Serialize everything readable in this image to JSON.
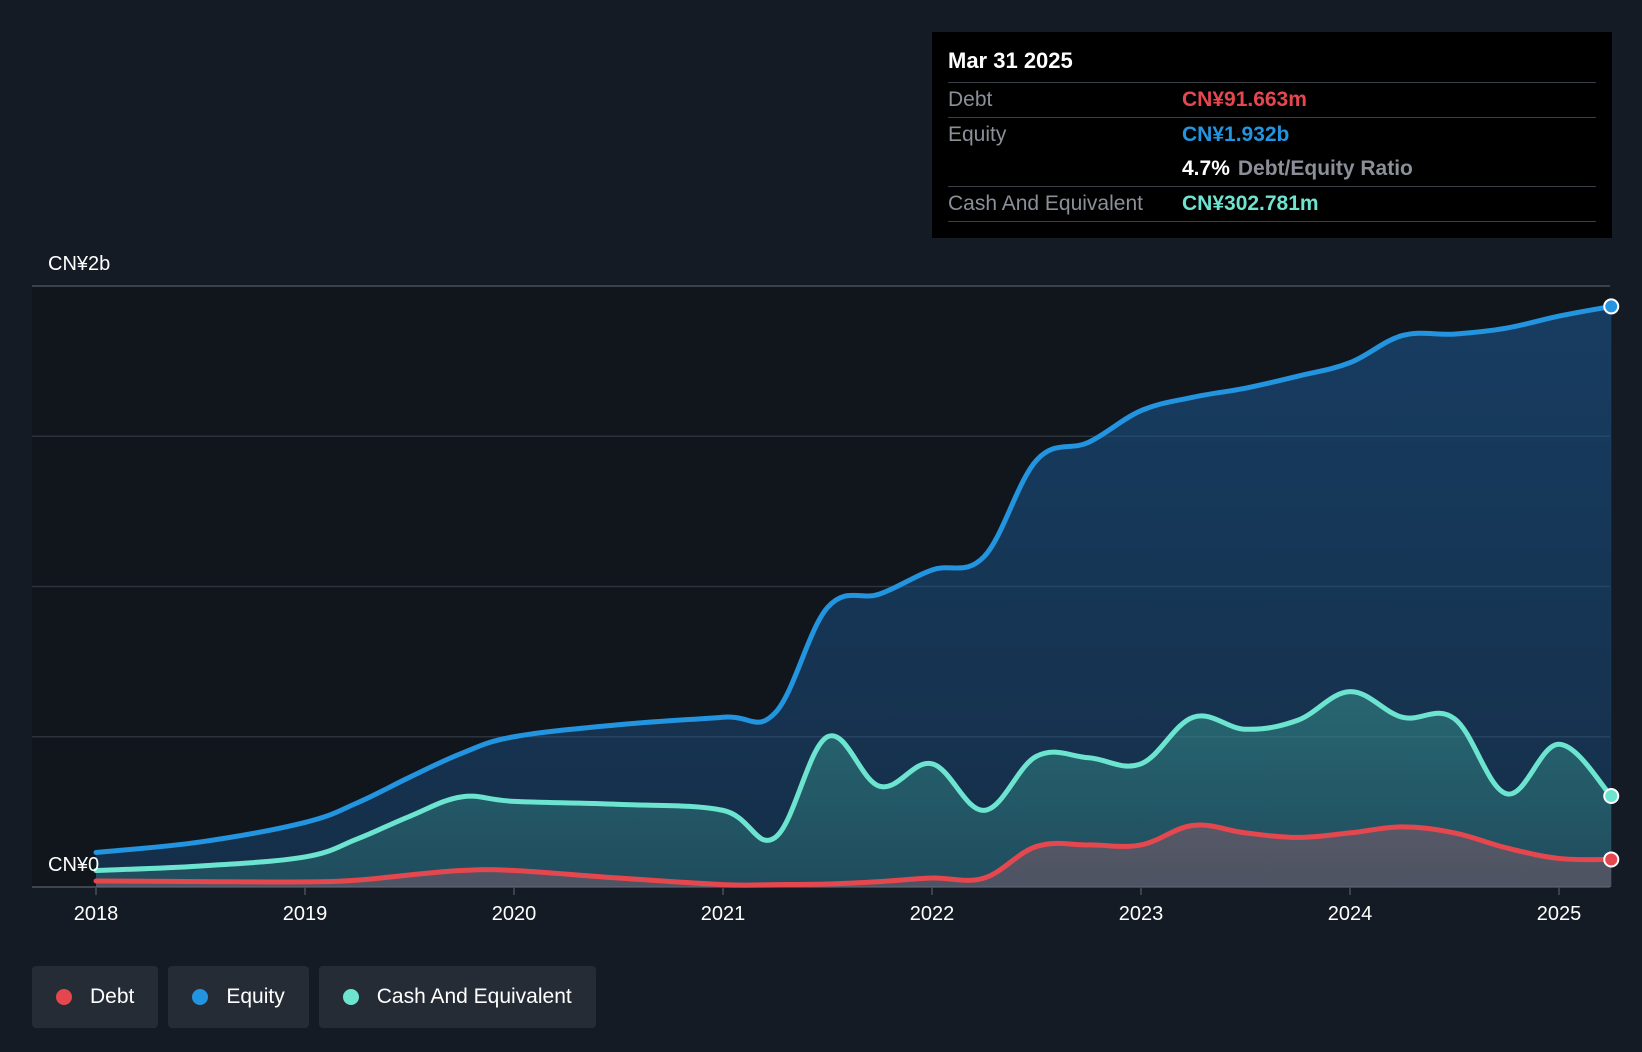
{
  "tooltip": {
    "date": "Mar 31 2025",
    "debt_label": "Debt",
    "debt_value": "CN¥91.663m",
    "equity_label": "Equity",
    "equity_value": "CN¥1.932b",
    "ratio_value": "4.7%",
    "ratio_label": "Debt/Equity Ratio",
    "cash_label": "Cash And Equivalent",
    "cash_value": "CN¥302.781m"
  },
  "legend": [
    {
      "name": "Debt",
      "color": "#e5474f"
    },
    {
      "name": "Equity",
      "color": "#2394df"
    },
    {
      "name": "Cash And Equivalent",
      "color": "#6ce4d0"
    }
  ],
  "chart_data": {
    "type": "area",
    "y_labels": {
      "top": "CN¥2b",
      "bottom": "CN¥0"
    },
    "ylim": [
      0,
      2000
    ],
    "xlim": [
      2017.95,
      2025.25
    ],
    "x_ticks": [
      {
        "value": 2018,
        "label": "2018"
      },
      {
        "value": 2019,
        "label": "2019"
      },
      {
        "value": 2020,
        "label": "2020"
      },
      {
        "value": 2021,
        "label": "2021"
      },
      {
        "value": 2022,
        "label": "2022"
      },
      {
        "value": 2023,
        "label": "2023"
      },
      {
        "value": 2024,
        "label": "2024"
      },
      {
        "value": 2025,
        "label": "2025"
      }
    ],
    "grid": true,
    "series": [
      {
        "name": "Equity",
        "color": "#2394df",
        "points": [
          [
            2018.0,
            115
          ],
          [
            2018.5,
            150
          ],
          [
            2019.0,
            215
          ],
          [
            2019.25,
            280
          ],
          [
            2019.5,
            365
          ],
          [
            2019.75,
            445
          ],
          [
            2020.0,
            500
          ],
          [
            2020.5,
            540
          ],
          [
            2021.0,
            565
          ],
          [
            2021.25,
            580
          ],
          [
            2021.5,
            930
          ],
          [
            2021.75,
            975
          ],
          [
            2022.0,
            1055
          ],
          [
            2022.25,
            1100
          ],
          [
            2022.5,
            1420
          ],
          [
            2022.75,
            1480
          ],
          [
            2023.0,
            1585
          ],
          [
            2023.25,
            1630
          ],
          [
            2023.5,
            1660
          ],
          [
            2023.75,
            1700
          ],
          [
            2024.0,
            1745
          ],
          [
            2024.25,
            1835
          ],
          [
            2024.5,
            1840
          ],
          [
            2024.75,
            1860
          ],
          [
            2025.0,
            1900
          ],
          [
            2025.25,
            1932
          ]
        ]
      },
      {
        "name": "Cash And Equivalent",
        "color": "#6ce4d0",
        "points": [
          [
            2018.0,
            55
          ],
          [
            2018.5,
            70
          ],
          [
            2019.0,
            100
          ],
          [
            2019.25,
            160
          ],
          [
            2019.5,
            235
          ],
          [
            2019.75,
            300
          ],
          [
            2020.0,
            285
          ],
          [
            2020.5,
            275
          ],
          [
            2021.0,
            255
          ],
          [
            2021.25,
            165
          ],
          [
            2021.5,
            500
          ],
          [
            2021.75,
            335
          ],
          [
            2022.0,
            410
          ],
          [
            2022.25,
            255
          ],
          [
            2022.5,
            435
          ],
          [
            2022.75,
            430
          ],
          [
            2023.0,
            410
          ],
          [
            2023.25,
            565
          ],
          [
            2023.5,
            525
          ],
          [
            2023.75,
            555
          ],
          [
            2024.0,
            650
          ],
          [
            2024.25,
            565
          ],
          [
            2024.5,
            560
          ],
          [
            2024.75,
            310
          ],
          [
            2025.0,
            475
          ],
          [
            2025.25,
            302.781
          ]
        ]
      },
      {
        "name": "Debt",
        "color": "#e5474f",
        "points": [
          [
            2018.0,
            20
          ],
          [
            2018.5,
            18
          ],
          [
            2019.0,
            17
          ],
          [
            2019.25,
            23
          ],
          [
            2019.5,
            40
          ],
          [
            2019.75,
            55
          ],
          [
            2020.0,
            55
          ],
          [
            2020.5,
            30
          ],
          [
            2021.0,
            8
          ],
          [
            2021.25,
            8
          ],
          [
            2021.5,
            10
          ],
          [
            2021.75,
            18
          ],
          [
            2022.0,
            30
          ],
          [
            2022.25,
            30
          ],
          [
            2022.5,
            135
          ],
          [
            2022.75,
            140
          ],
          [
            2023.0,
            140
          ],
          [
            2023.25,
            205
          ],
          [
            2023.5,
            180
          ],
          [
            2023.75,
            165
          ],
          [
            2024.0,
            180
          ],
          [
            2024.25,
            200
          ],
          [
            2024.5,
            180
          ],
          [
            2024.75,
            130
          ],
          [
            2025.0,
            95
          ],
          [
            2025.25,
            91.663
          ]
        ]
      }
    ]
  }
}
